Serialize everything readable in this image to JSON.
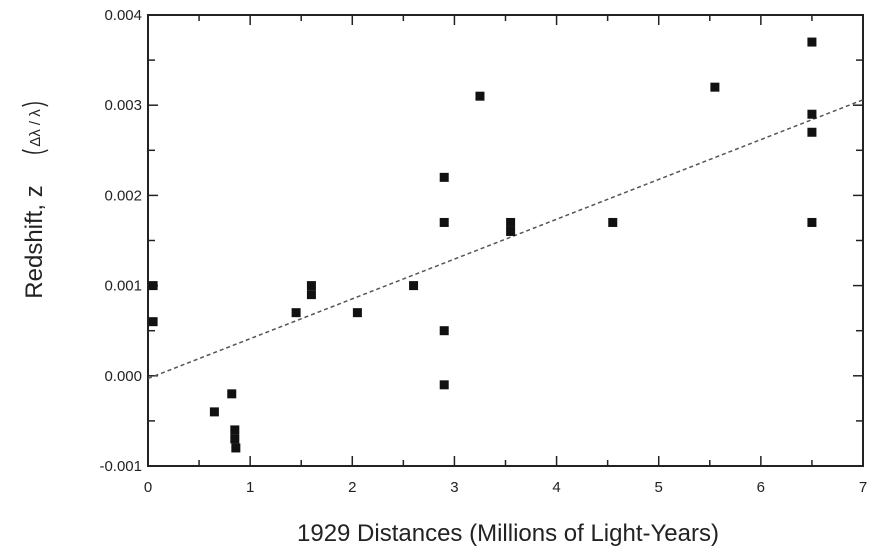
{
  "chart_data": {
    "type": "scatter",
    "title": "",
    "xlabel": "1929 Distances (Millions of Light-Years)",
    "ylabel": "Redshift, z",
    "ylabel_formula": "Δλ / λ",
    "xlim": [
      0,
      7
    ],
    "ylim": [
      -0.001,
      0.004
    ],
    "x_ticks": [
      0,
      1,
      2,
      3,
      4,
      5,
      6,
      7
    ],
    "x_tick_labels": [
      "0",
      "1",
      "2",
      "3",
      "4",
      "5",
      "6",
      "7"
    ],
    "y_ticks": [
      -0.001,
      0.0,
      0.001,
      0.002,
      0.003,
      0.004
    ],
    "y_tick_labels": [
      "-0.001",
      "0.000",
      "0.001",
      "0.002",
      "0.003",
      "0.004"
    ],
    "grid": false,
    "legend": "none",
    "marker_color": "#111111",
    "points": [
      {
        "x": 0.05,
        "y": 0.001
      },
      {
        "x": 0.05,
        "y": 0.0006
      },
      {
        "x": 0.65,
        "y": -0.0004
      },
      {
        "x": 0.82,
        "y": -0.0002
      },
      {
        "x": 0.85,
        "y": -0.0006
      },
      {
        "x": 0.85,
        "y": -0.0007
      },
      {
        "x": 0.86,
        "y": -0.0008
      },
      {
        "x": 1.45,
        "y": 0.0007
      },
      {
        "x": 1.6,
        "y": 0.001
      },
      {
        "x": 1.6,
        "y": 0.0009
      },
      {
        "x": 2.05,
        "y": 0.0007
      },
      {
        "x": 2.6,
        "y": 0.001
      },
      {
        "x": 2.9,
        "y": 0.0022
      },
      {
        "x": 2.9,
        "y": 0.0017
      },
      {
        "x": 2.9,
        "y": 0.0005
      },
      {
        "x": 2.9,
        "y": -0.0001
      },
      {
        "x": 3.25,
        "y": 0.0031
      },
      {
        "x": 3.55,
        "y": 0.0017
      },
      {
        "x": 3.55,
        "y": 0.0016
      },
      {
        "x": 4.55,
        "y": 0.0017
      },
      {
        "x": 5.55,
        "y": 0.0032
      },
      {
        "x": 6.5,
        "y": 0.0037
      },
      {
        "x": 6.5,
        "y": 0.0029
      },
      {
        "x": 6.5,
        "y": 0.0027
      },
      {
        "x": 6.5,
        "y": 0.0017
      }
    ],
    "trend_line": {
      "style": "dashed",
      "color": "#555555",
      "x": [
        0,
        7
      ],
      "y": [
        -3e-05,
        0.00306
      ]
    }
  }
}
